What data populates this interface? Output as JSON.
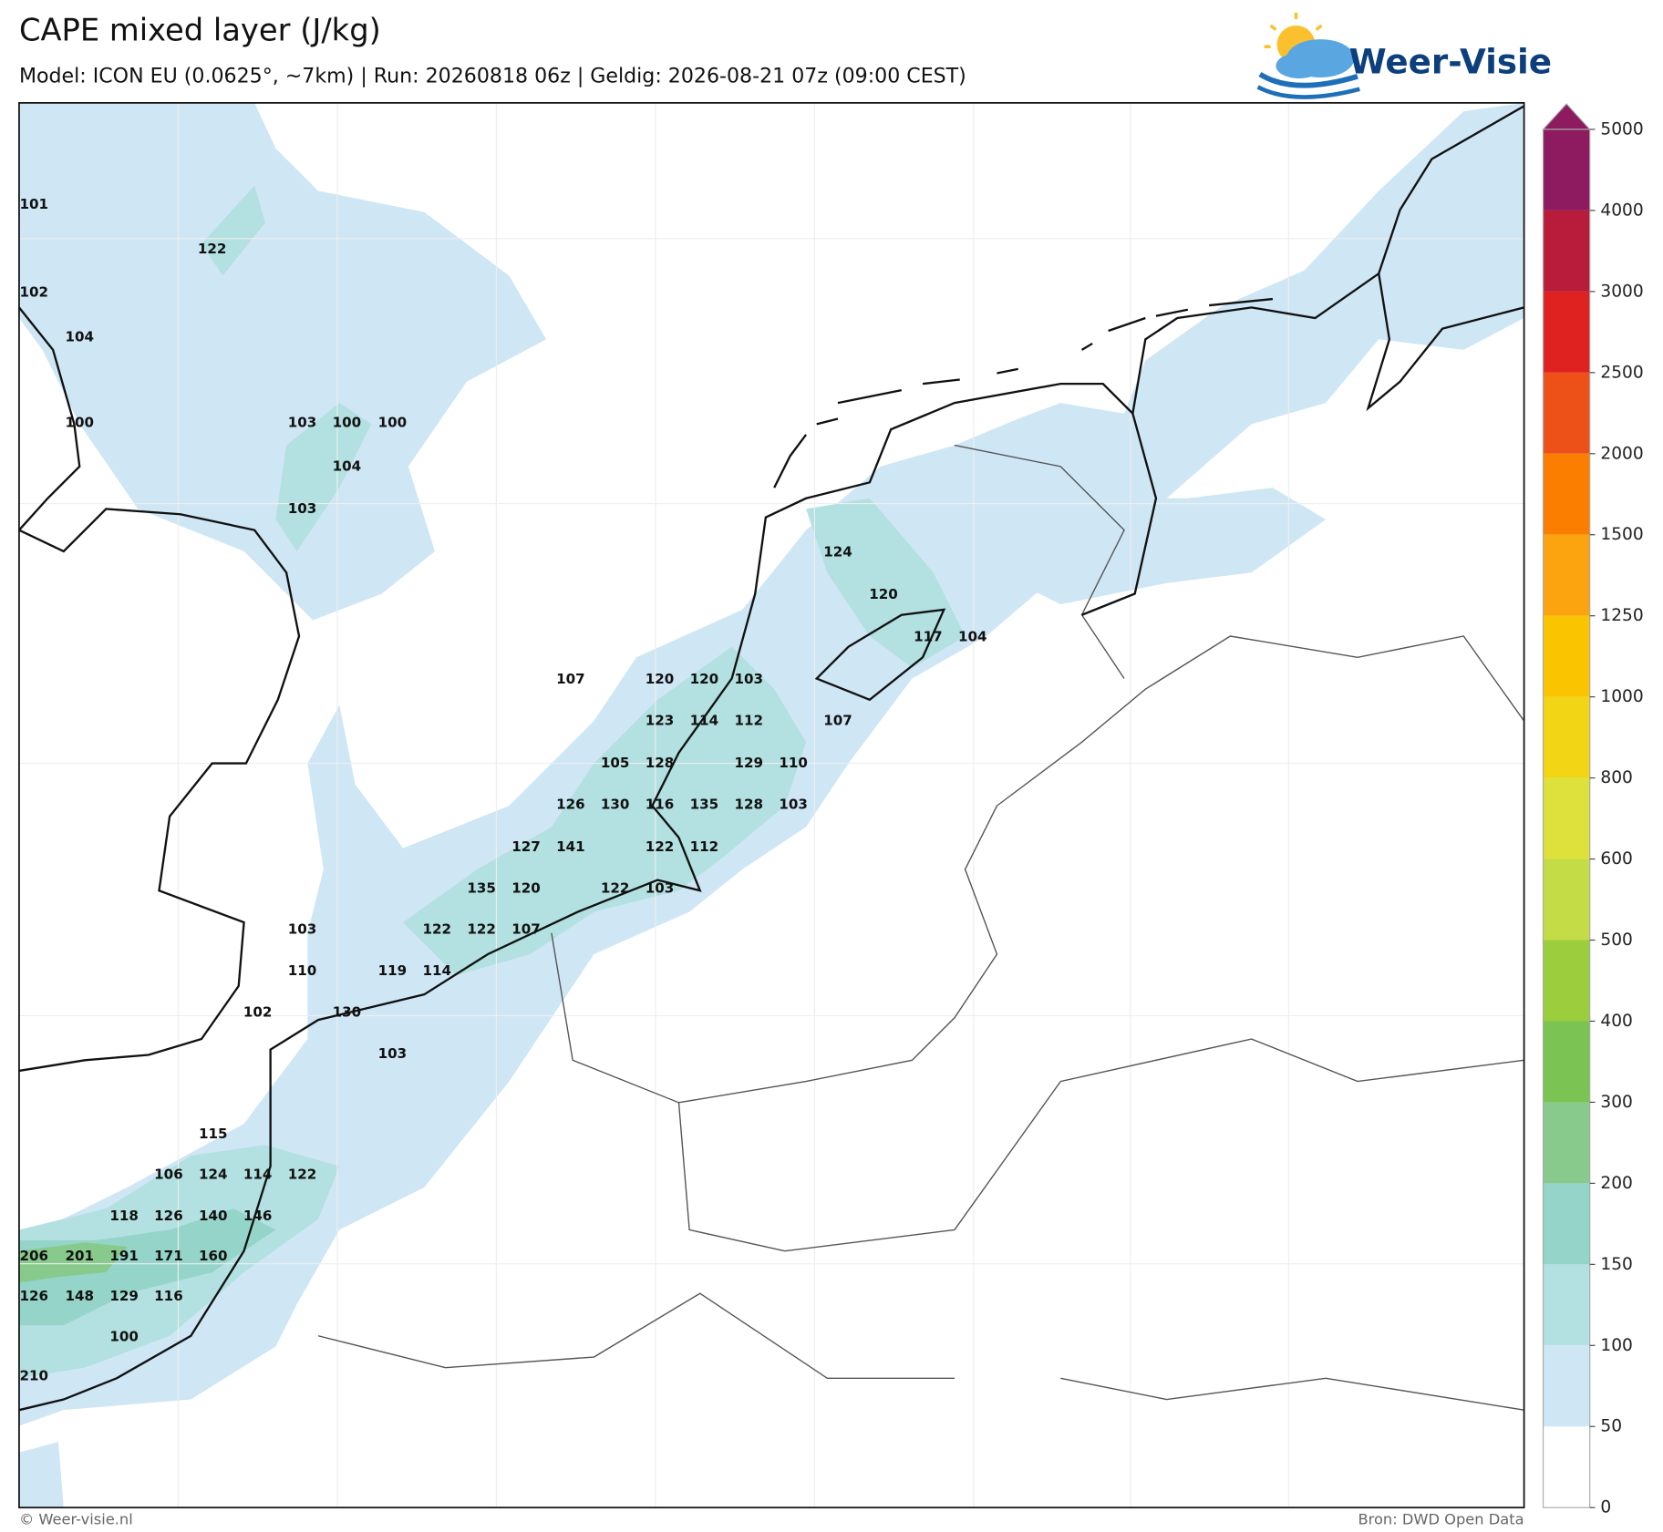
{
  "header": {
    "title": "CAPE mixed layer (J/kg)",
    "subtitle": "Model: ICON EU (0.0625°, ~7km)  |  Run: 20260818 06z  |  Geldig: 2026-08-21 07z (09:00 CEST)"
  },
  "logo": {
    "text": "Weer-Visie"
  },
  "map": {
    "labels": [
      101,
      122,
      102,
      104,
      100,
      103,
      100,
      100,
      104,
      103,
      124,
      120,
      117,
      104,
      107,
      120,
      120,
      103,
      123,
      114,
      112,
      107,
      105,
      128,
      129,
      110,
      126,
      130,
      116,
      135,
      128,
      103,
      127,
      141,
      122,
      112,
      135,
      120,
      122,
      103,
      103,
      122,
      122,
      107,
      110,
      119,
      114,
      102,
      130,
      103,
      115,
      106,
      124,
      114,
      122,
      118,
      126,
      140,
      146,
      206,
      201,
      191,
      171,
      160,
      126,
      148,
      129,
      116,
      100,
      210
    ]
  },
  "colorbar": {
    "levels": [
      0,
      50,
      100,
      150,
      200,
      300,
      400,
      500,
      600,
      800,
      1000,
      1250,
      1500,
      2000,
      2500,
      3000,
      4000,
      5000
    ],
    "colors": [
      "#ffffff",
      "#cfe6f5",
      "#b3e0e0",
      "#95d4c8",
      "#88c98c",
      "#7bc353",
      "#9ccd3c",
      "#c4dc45",
      "#dee13c",
      "#f2d515",
      "#fbc400",
      "#fba410",
      "#fb7e00",
      "#ee5118",
      "#df2120",
      "#b81c3a",
      "#8e1a60"
    ]
  },
  "footer": {
    "left": "© Weer-visie.nl",
    "right": "Bron: DWD Open Data"
  }
}
